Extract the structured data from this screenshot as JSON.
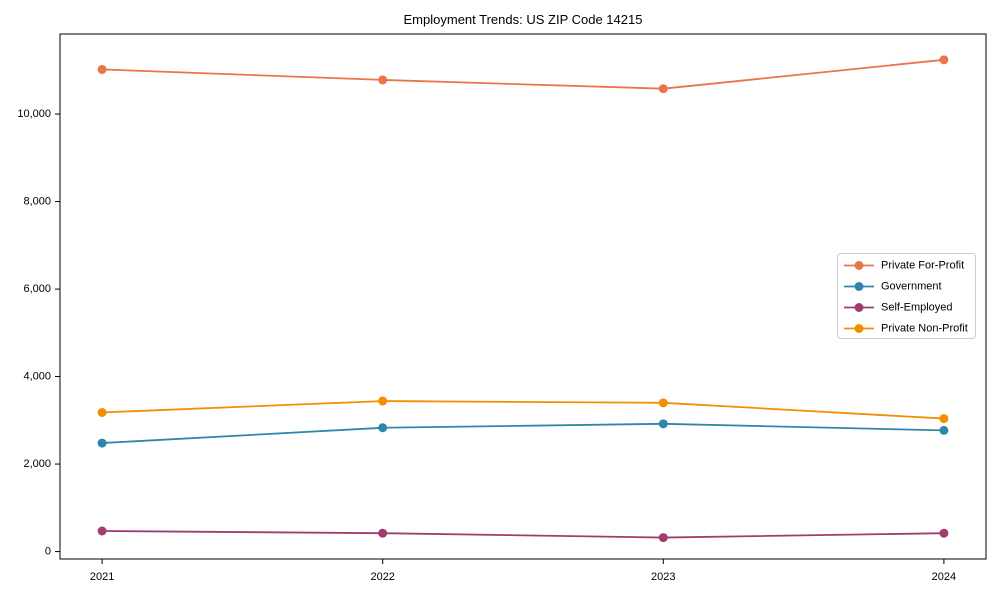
{
  "figure": {
    "background": "#ffffff",
    "axis_color": "#000000",
    "text_color": "#000000",
    "legend_border_color": "#cccccc"
  },
  "chart_data": {
    "type": "line",
    "title": "Employment Trends: US ZIP Code 14215",
    "xlabel": "",
    "ylabel": "",
    "x": [
      2021,
      2022,
      2023,
      2024
    ],
    "x_tick_labels": [
      "2021",
      "2022",
      "2023",
      "2024"
    ],
    "yticks": [
      0,
      2000,
      4000,
      6000,
      8000,
      10000
    ],
    "ytick_labels": [
      "0",
      "2,000",
      "4,000",
      "6,000",
      "8,000",
      "10,000"
    ],
    "xlim": [
      2020.85,
      2024.15
    ],
    "ylim": [
      -170,
      11830
    ],
    "grid": false,
    "marker": "o",
    "legend_position": "center-right",
    "series": [
      {
        "name": "Private For-Profit",
        "color": "#E8764A",
        "values": [
          11020,
          10780,
          10580,
          11240
        ]
      },
      {
        "name": "Government",
        "color": "#2E86AB",
        "values": [
          2480,
          2830,
          2920,
          2770
        ]
      },
      {
        "name": "Self-Employed",
        "color": "#A23B72",
        "values": [
          470,
          420,
          320,
          420
        ]
      },
      {
        "name": "Private Non-Profit",
        "color": "#F18F01",
        "values": [
          3180,
          3440,
          3400,
          3040
        ]
      }
    ]
  }
}
